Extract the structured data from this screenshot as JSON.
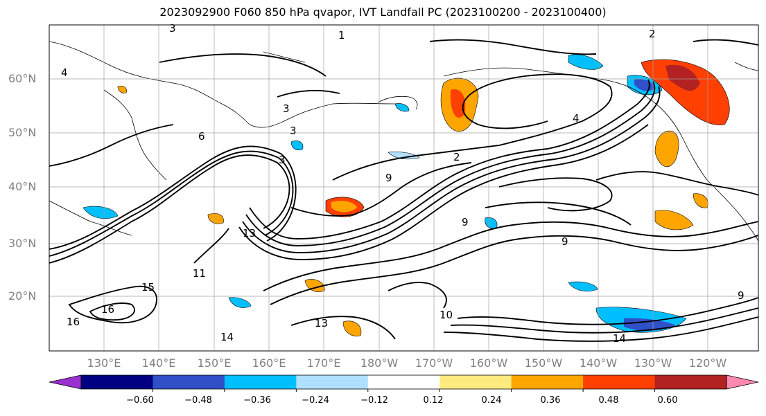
{
  "title": "2023092900 F060 850 hPa qvapor, IVT Landfall PC (2023100200 - 2023100400)",
  "lat_labels": [
    "60°N",
    "50°N",
    "40°N",
    "30°N",
    "20°N"
  ],
  "lon_labels": [
    "130°E",
    "140°E",
    "150°E",
    "160°E",
    "170°E",
    "180°W",
    "170°W",
    "160°W",
    "150°W",
    "140°W",
    "130°W",
    "120°W"
  ],
  "colorbar": {
    "ticks": [
      "−0.60",
      "−0.48",
      "−0.36",
      "−0.24",
      "−0.12",
      "0.12",
      "0.24",
      "0.36",
      "0.48",
      "0.60"
    ],
    "colors": [
      "#9b30d0",
      "#000080",
      "#3050c8",
      "#00bfff",
      "#b0e0ff",
      "#ffffff",
      "#ffeb80",
      "#ffa500",
      "#ff4000",
      "#b22222",
      "#ff88b0"
    ]
  },
  "contour_labels": [
    "1",
    "2",
    "2",
    "3",
    "3",
    "3",
    "3",
    "4",
    "4",
    "6",
    "9",
    "9",
    "9",
    "9",
    "10",
    "11",
    "13",
    "13",
    "14",
    "14",
    "15",
    "16",
    "16"
  ]
}
